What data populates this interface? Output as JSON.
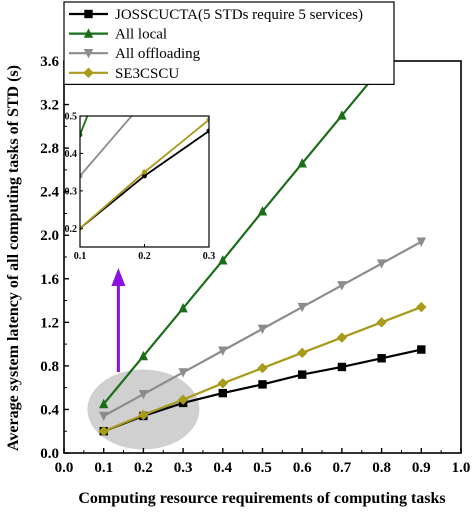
{
  "chart_data": {
    "type": "line",
    "xlabel": "Computing resource requirements of computing tasks",
    "ylabel": "Average system latency of all computing tasks of  STD (s)",
    "xlim": [
      0.0,
      1.0
    ],
    "ylim": [
      0.0,
      3.6
    ],
    "xticks": [
      "0.0",
      "0.1",
      "0.2",
      "0.3",
      "0.4",
      "0.5",
      "0.6",
      "0.7",
      "0.8",
      "0.9",
      "1.0"
    ],
    "yticks": [
      "0.0",
      "0.4",
      "0.8",
      "1.2",
      "1.6",
      "2.0",
      "2.4",
      "2.8",
      "3.2",
      "3.6"
    ],
    "legend_position": "top-left",
    "grid": false,
    "x": [
      0.1,
      0.2,
      0.3,
      0.4,
      0.5,
      0.6,
      0.7,
      0.8,
      0.9
    ],
    "series": [
      {
        "name": "JOSSCUCTA(5 STDs require 5 services)",
        "color": "#000000",
        "marker": "square",
        "values": [
          0.2,
          0.34,
          0.46,
          0.55,
          0.63,
          0.72,
          0.79,
          0.87,
          0.95
        ]
      },
      {
        "name": "All local",
        "color": "#1a6e1a",
        "marker": "triangle-up",
        "values": [
          0.45,
          0.89,
          1.33,
          1.77,
          2.22,
          2.66,
          3.1,
          3.54,
          3.98
        ]
      },
      {
        "name": "All offloading",
        "color": "#8c8c8c",
        "marker": "triangle-down",
        "values": [
          0.34,
          0.54,
          0.74,
          0.94,
          1.14,
          1.34,
          1.54,
          1.74,
          1.94
        ]
      },
      {
        "name": "SE3CSCU",
        "color": "#a89a1a",
        "marker": "diamond",
        "values": [
          0.2,
          0.35,
          0.49,
          0.64,
          0.78,
          0.92,
          1.06,
          1.2,
          1.34
        ]
      }
    ],
    "inset": {
      "xlim": [
        0.1,
        0.3
      ],
      "ylim": [
        0.15,
        0.5
      ],
      "xticks": [
        "0.1",
        "0.2",
        "0.3"
      ],
      "yticks": [
        "0.2",
        "0.3",
        "0.4",
        "0.5"
      ]
    }
  }
}
